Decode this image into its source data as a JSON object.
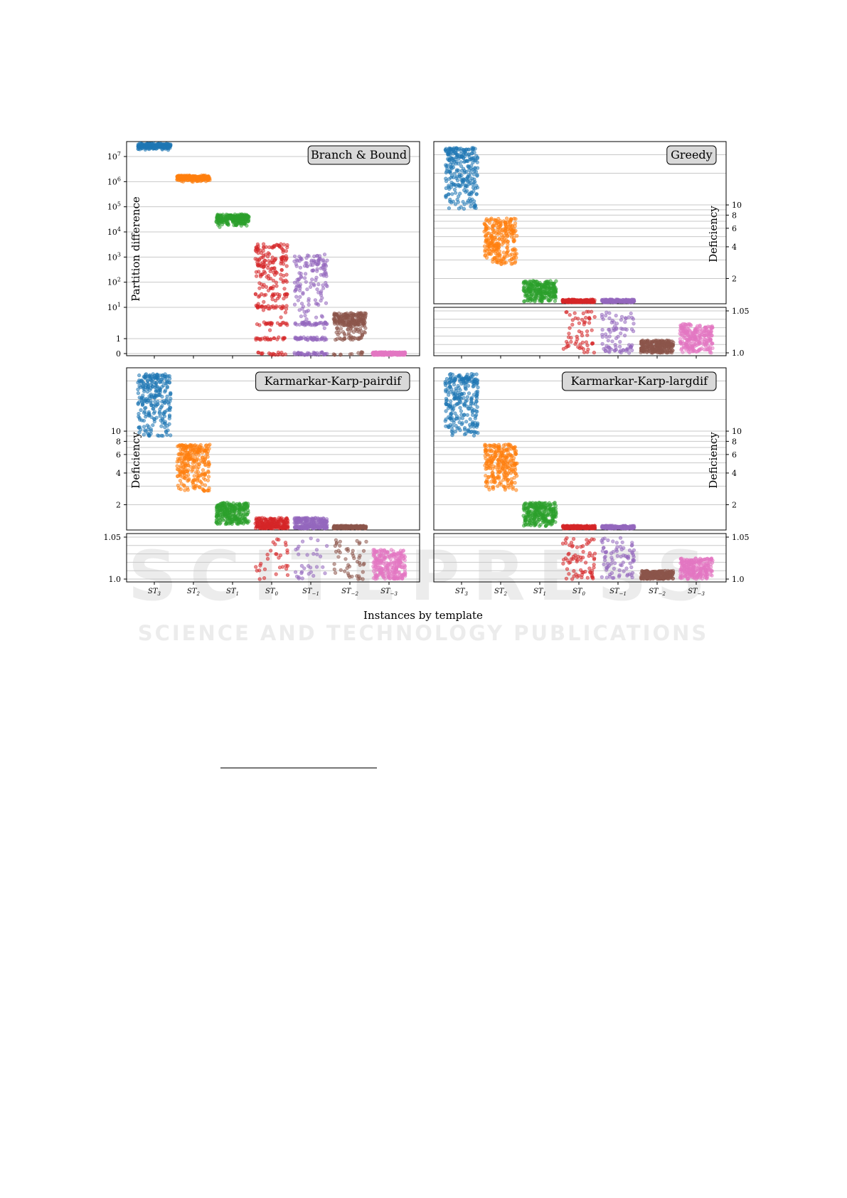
{
  "chart_data": [
    {
      "type": "scatter",
      "title": "Branch & Bound",
      "ylabel": "Partition difference",
      "yscale": "symlog",
      "ylim": [
        0,
        40000000
      ],
      "yticks": [
        0,
        1,
        10,
        100,
        1000,
        10000,
        100000,
        1000000,
        10000000
      ],
      "ytick_labels": [
        "0",
        "1",
        "10^1",
        "10^2",
        "10^3",
        "10^4",
        "10^5",
        "10^6",
        "10^7"
      ],
      "categories": [
        "ST_3",
        "ST_2",
        "ST_1",
        "ST_0",
        "ST_-1",
        "ST_-2",
        "ST_-3"
      ],
      "series": [
        {
          "category": "ST_3",
          "color": "#1f77b4",
          "range": [
            19000000,
            30000000
          ]
        },
        {
          "category": "ST_2",
          "color": "#ff7f0e",
          "range": [
            1000000,
            1600000
          ]
        },
        {
          "category": "ST_1",
          "color": "#2ca02c",
          "range": [
            16000,
            45000
          ]
        },
        {
          "category": "ST_0",
          "color": "#d62728",
          "range": [
            0,
            3000
          ],
          "discrete": [
            0,
            1,
            3,
            10,
            30
          ]
        },
        {
          "category": "ST_-1",
          "color": "#9467bd",
          "range": [
            0,
            1200
          ],
          "discrete": [
            0,
            1,
            3
          ]
        },
        {
          "category": "ST_-2",
          "color": "#8c564b",
          "range": [
            0,
            6
          ],
          "discrete": [
            0,
            1,
            3,
            4,
            6
          ]
        },
        {
          "category": "ST_-3",
          "color": "#e377c2",
          "range": [
            0,
            0
          ]
        }
      ]
    },
    {
      "type": "scatter",
      "title": "Greedy",
      "ylabel": "Deficiency",
      "ylim_upper": [
        1.15,
        40
      ],
      "ylim_lower": [
        0.995,
        1.05
      ],
      "yticks_upper": [
        2,
        4,
        6,
        8,
        10
      ],
      "yticks_lower": [
        1.0,
        1.05
      ],
      "ytick_labels_lower": [
        "1.0",
        "1.05"
      ],
      "categories": [
        "ST_3",
        "ST_2",
        "ST_1",
        "ST_0",
        "ST_-1",
        "ST_-2",
        "ST_-3"
      ],
      "series": [
        {
          "category": "ST_3",
          "color": "#1f77b4",
          "range": [
            9,
            35
          ]
        },
        {
          "category": "ST_2",
          "color": "#ff7f0e",
          "range": [
            2.7,
            7.5
          ]
        },
        {
          "category": "ST_1",
          "color": "#2ca02c",
          "range": [
            1.2,
            1.9
          ]
        },
        {
          "category": "ST_0",
          "color": "#d62728",
          "range": [
            1.0,
            1.2
          ]
        },
        {
          "category": "ST_-1",
          "color": "#9467bd",
          "range": [
            1.0,
            1.16
          ]
        },
        {
          "category": "ST_-2",
          "color": "#8c564b",
          "range": [
            1.0,
            1.015
          ]
        },
        {
          "category": "ST_-3",
          "color": "#e377c2",
          "range": [
            1.0,
            1.035
          ]
        }
      ]
    },
    {
      "type": "scatter",
      "title": "Karmarkar-Karp-pairdif",
      "ylabel": "Deficiency",
      "ylim_upper": [
        1.15,
        40
      ],
      "ylim_lower": [
        0.995,
        1.05
      ],
      "yticks_upper": [
        2,
        4,
        6,
        8,
        10
      ],
      "yticks_lower": [
        1.0,
        1.05
      ],
      "ytick_labels_lower": [
        "1.0",
        "1.05"
      ],
      "categories": [
        "ST_3",
        "ST_2",
        "ST_1",
        "ST_0",
        "ST_-1",
        "ST_-2",
        "ST_-3"
      ],
      "series": [
        {
          "category": "ST_3",
          "color": "#1f77b4",
          "range": [
            9,
            35
          ]
        },
        {
          "category": "ST_2",
          "color": "#ff7f0e",
          "range": [
            2.7,
            7.5
          ]
        },
        {
          "category": "ST_1",
          "color": "#2ca02c",
          "range": [
            1.3,
            2.1
          ]
        },
        {
          "category": "ST_0",
          "color": "#d62728",
          "range": [
            1.0,
            1.5
          ]
        },
        {
          "category": "ST_-1",
          "color": "#9467bd",
          "range": [
            1.0,
            1.5
          ]
        },
        {
          "category": "ST_-2",
          "color": "#8c564b",
          "range": [
            1.0,
            1.26
          ]
        },
        {
          "category": "ST_-3",
          "color": "#e377c2",
          "range": [
            1.0,
            1.035
          ]
        }
      ]
    },
    {
      "type": "scatter",
      "title": "Karmarkar-Karp-largdif",
      "ylabel": "Deficiency",
      "ylim_upper": [
        1.15,
        40
      ],
      "ylim_lower": [
        0.995,
        1.05
      ],
      "yticks_upper": [
        2,
        4,
        6,
        8,
        10
      ],
      "yticks_lower": [
        1.0,
        1.05
      ],
      "ytick_labels_lower": [
        "1.0",
        "1.05"
      ],
      "categories": [
        "ST_3",
        "ST_2",
        "ST_1",
        "ST_0",
        "ST_-1",
        "ST_-2",
        "ST_-3"
      ],
      "series": [
        {
          "category": "ST_3",
          "color": "#1f77b4",
          "range": [
            9,
            35
          ]
        },
        {
          "category": "ST_2",
          "color": "#ff7f0e",
          "range": [
            2.7,
            7.5
          ]
        },
        {
          "category": "ST_1",
          "color": "#2ca02c",
          "range": [
            1.25,
            2.1
          ]
        },
        {
          "category": "ST_0",
          "color": "#d62728",
          "range": [
            1.0,
            1.2
          ]
        },
        {
          "category": "ST_-1",
          "color": "#9467bd",
          "range": [
            1.0,
            1.16
          ]
        },
        {
          "category": "ST_-2",
          "color": "#8c564b",
          "range": [
            1.0,
            1.01
          ]
        },
        {
          "category": "ST_-3",
          "color": "#e377c2",
          "range": [
            1.0,
            1.025
          ]
        }
      ]
    }
  ],
  "figure": {
    "xlabel": "Instances by template",
    "category_labels": [
      "ST3",
      "ST2",
      "ST1",
      "ST0",
      "ST−1",
      "ST−2",
      "ST−3"
    ]
  },
  "watermark": {
    "big": "SCITEPRESS",
    "small": "SCIENCE AND TECHNOLOGY PUBLICATIONS"
  }
}
